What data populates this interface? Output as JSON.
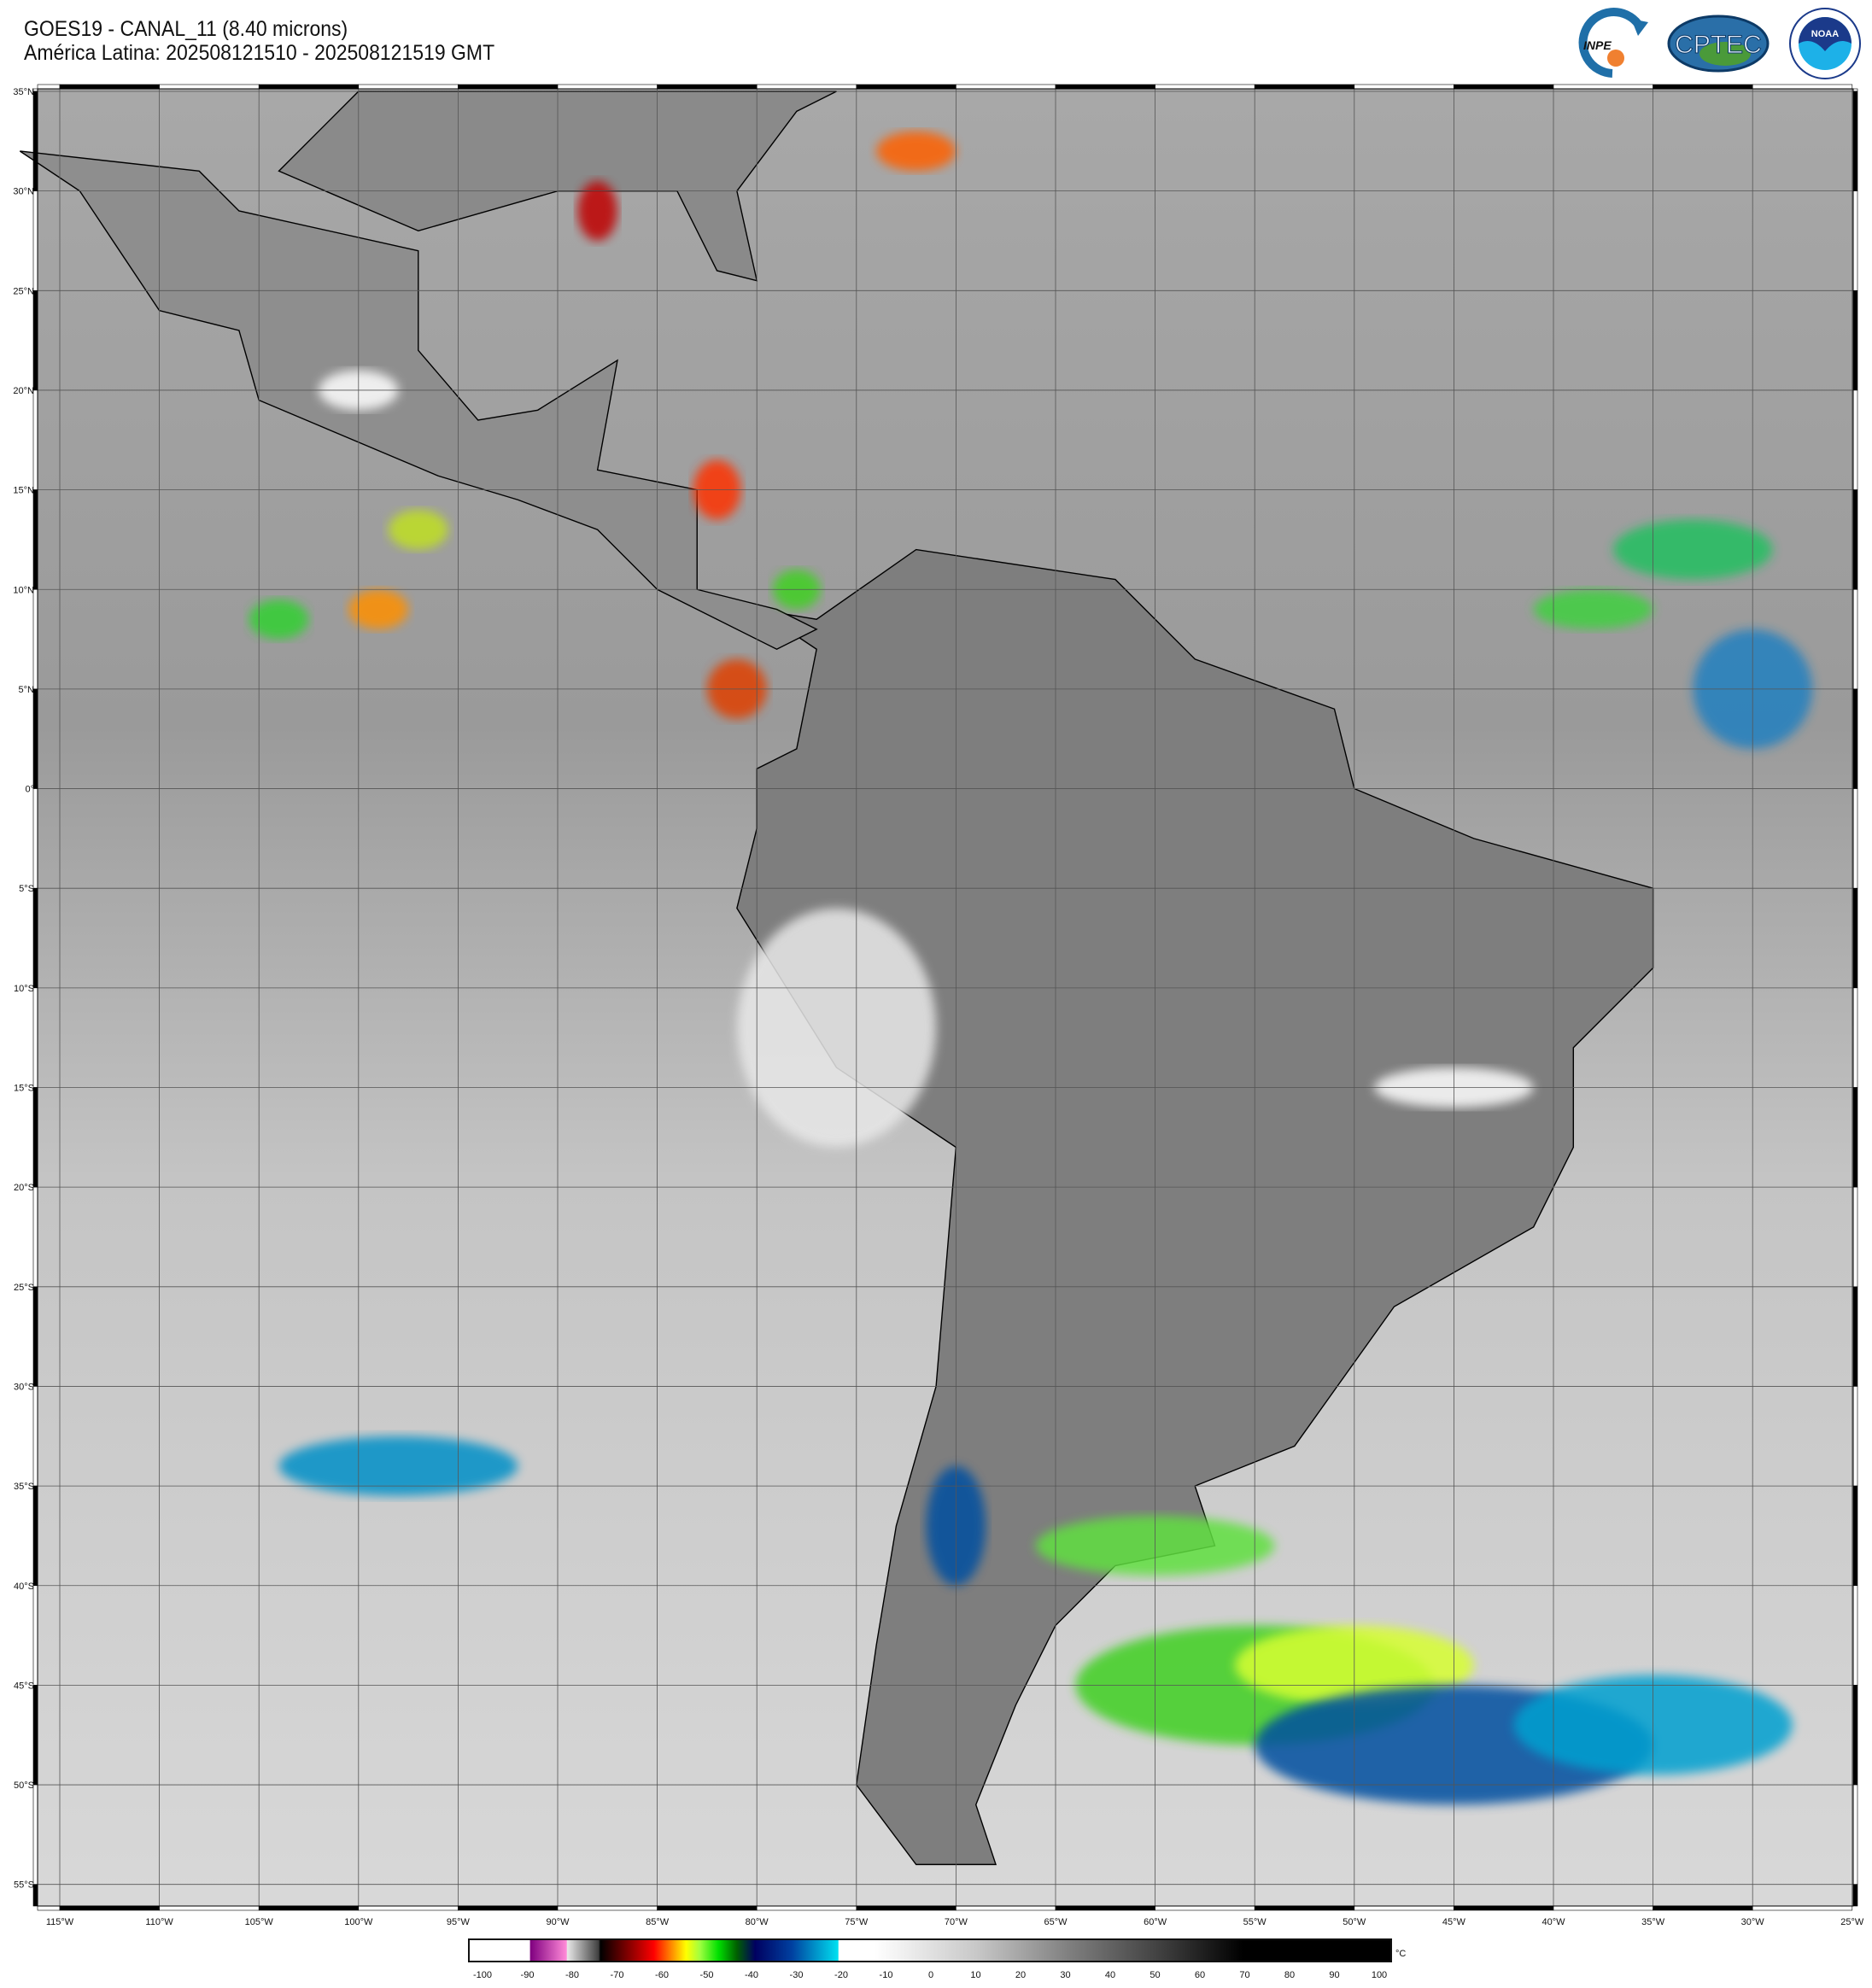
{
  "header": {
    "title": "GOES19 - CANAL_11 (8.40 microns)",
    "subtitle": "América Latina: 202508121510 - 202508121519 GMT"
  },
  "logos": [
    {
      "name": "INPE",
      "text": "INPE"
    },
    {
      "name": "CPTEC",
      "text": "CPTEC"
    },
    {
      "name": "NOAA",
      "text": "NOAA",
      "ring_text": "NATIONAL OCEANIC AND ATMOSPHERIC ADMINISTRATION · U.S. DEPARTMENT OF COMMERCE"
    }
  ],
  "map": {
    "longitude_labels": [
      "115°W",
      "110°W",
      "105°W",
      "100°W",
      "95°W",
      "90°W",
      "85°W",
      "80°W",
      "75°W",
      "70°W",
      "65°W",
      "60°W",
      "55°W",
      "50°W",
      "45°W",
      "40°W",
      "35°W",
      "30°W",
      "25°W"
    ],
    "latitude_labels": [
      "35°N",
      "30°N",
      "25°N",
      "20°N",
      "15°N",
      "10°N",
      "5°N",
      "0°",
      "5°S",
      "10°S",
      "15°S",
      "20°S",
      "25°S",
      "30°S",
      "35°S",
      "40°S",
      "45°S",
      "50°S",
      "55°S"
    ],
    "lon_range": [
      -115,
      -25
    ],
    "lat_range": [
      -55,
      35
    ],
    "grid": true
  },
  "colorbar": {
    "unit": "°C",
    "ticks": [
      "-100",
      "-90",
      "-80",
      "-70",
      "-60",
      "-50",
      "-40",
      "-30",
      "-20",
      "-10",
      "0",
      "10",
      "20",
      "30",
      "40",
      "50",
      "60",
      "70",
      "80",
      "90",
      "100"
    ],
    "range": [
      -100,
      100
    ]
  }
}
